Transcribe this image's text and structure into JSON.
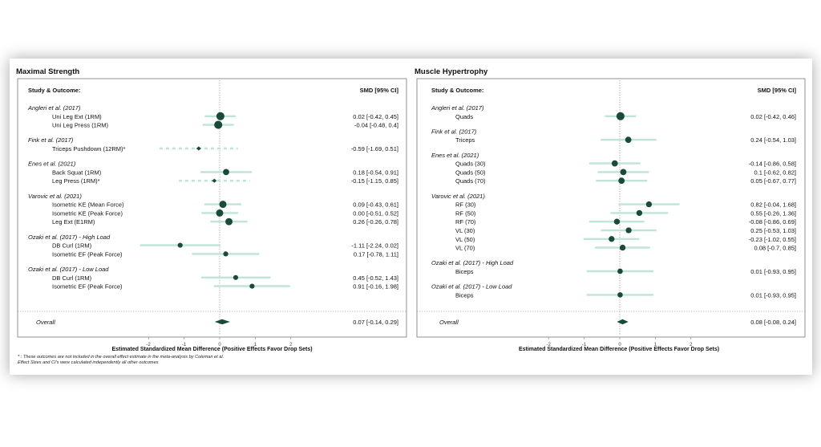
{
  "colors": {
    "point": "#1a4a3a",
    "ci": "#bfe4d8",
    "frame": "#777777",
    "text": "#111111",
    "zero_line": "#888888"
  },
  "footnote": {
    "line1": "* : These outcomes are not included in the overall effect estimate in the meta-analysis by Coleman et al.",
    "line2": "Effect Sizes and CI's were calculated independently all other outcomes"
  },
  "chart_data": [
    {
      "type": "forest",
      "title": "Maximal Strength",
      "col_left": "Study & Outcome:",
      "col_right": "SMD [95% CI]",
      "xlabel": "Estimated Standardized Mean Difference (Positive Effects Favor Drop Sets)",
      "xlim": [
        -2.5,
        2.5
      ],
      "xticks": [
        -2,
        -1,
        0,
        1,
        2
      ],
      "groups": [
        {
          "study": "Angleri et al. (2017)",
          "rows": [
            {
              "outcome": "Uni Leg Ext (1RM)",
              "est": 0.02,
              "lo": -0.42,
              "hi": 0.45,
              "label": "0.02 [-0.42, 0.45]",
              "weight": 3
            },
            {
              "outcome": "Uni Leg Press (1RM)",
              "est": -0.04,
              "lo": -0.48,
              "hi": 0.4,
              "label": "-0.04 [-0.48, 0.4]",
              "weight": 3
            }
          ]
        },
        {
          "study": "Fink et al. (2017)",
          "rows": [
            {
              "outcome": "Triceps Pushdown (12RM)*",
              "est": -0.59,
              "lo": -1.69,
              "hi": 0.51,
              "label": "-0.59 [-1.69, 0.51]",
              "weight": 1,
              "excluded": true
            }
          ]
        },
        {
          "study": "Enes et al. (2021)",
          "rows": [
            {
              "outcome": "Back Squat (1RM)",
              "est": 0.18,
              "lo": -0.54,
              "hi": 0.91,
              "label": "0.18 [-0.54, 0.91]",
              "weight": 2
            },
            {
              "outcome": "Leg Press (1RM)*",
              "est": -0.15,
              "lo": -1.15,
              "hi": 0.85,
              "label": "-0.15 [-1.15, 0.85]",
              "weight": 1,
              "excluded": true
            }
          ]
        },
        {
          "study": "Varovic et al. (2021)",
          "rows": [
            {
              "outcome": "Isometric KE (Mean Force)",
              "est": 0.09,
              "lo": -0.43,
              "hi": 0.61,
              "label": "0.09 [-0.43, 0.61]",
              "weight": 2.5
            },
            {
              "outcome": "Isometric KE (Peak Force)",
              "est": 0.0,
              "lo": -0.51,
              "hi": 0.52,
              "label": "0.00 [-0.51, 0.52]",
              "weight": 2.5
            },
            {
              "outcome": "Leg Ext (E1RM)",
              "est": 0.26,
              "lo": -0.26,
              "hi": 0.78,
              "label": "0.26 [-0.26, 0.78]",
              "weight": 2.5
            }
          ]
        },
        {
          "study": "Ozaki et al. (2017) - High Load",
          "rows": [
            {
              "outcome": "DB Curl (1RM)",
              "est": -1.11,
              "lo": -2.24,
              "hi": 0.02,
              "label": "-1.11 [-2.24, 0.02]",
              "weight": 1.3
            },
            {
              "outcome": "Isometric EF (Peak Force)",
              "est": 0.17,
              "lo": -0.78,
              "hi": 1.11,
              "label": "0.17 [-0.78, 1.11]",
              "weight": 1.3
            }
          ]
        },
        {
          "study": "Ozaki et al. (2017) - Low Load",
          "rows": [
            {
              "outcome": "DB Curl (1RM)",
              "est": 0.45,
              "lo": -0.52,
              "hi": 1.43,
              "label": "0.45 [-0.52, 1.43]",
              "weight": 1.3
            },
            {
              "outcome": "Isometric EF (Peak Force)",
              "est": 0.91,
              "lo": -0.16,
              "hi": 1.98,
              "label": "0.91 [-0.16, 1.98]",
              "weight": 1.3
            }
          ]
        }
      ],
      "overall": {
        "label_text": "Overall",
        "est": 0.07,
        "lo": -0.14,
        "hi": 0.29,
        "label": "0.07 [-0.14, 0.29]"
      }
    },
    {
      "type": "forest",
      "title": "Muscle Hypertrophy",
      "col_left": "Study & Outcome:",
      "col_right": "SMD [95% CI]",
      "xlabel": "Estimated Standardized Mean Difference (Positive Effects Favor Drop Sets)",
      "xlim": [
        -2.5,
        2.5
      ],
      "xticks": [
        -2,
        -1,
        0,
        1,
        2
      ],
      "groups": [
        {
          "study": "Angleri et al. (2017)",
          "rows": [
            {
              "outcome": "Quads",
              "est": 0.02,
              "lo": -0.42,
              "hi": 0.46,
              "label": "0.02 [-0.42, 0.46]",
              "weight": 3
            }
          ]
        },
        {
          "study": "Fink et al. (2017)",
          "rows": [
            {
              "outcome": "Triceps",
              "est": 0.24,
              "lo": -0.54,
              "hi": 1.03,
              "label": "0.24 [-0.54, 1.03]",
              "weight": 2
            }
          ]
        },
        {
          "study": "Enes et al. (2021)",
          "rows": [
            {
              "outcome": "Quads (30)",
              "est": -0.14,
              "lo": -0.86,
              "hi": 0.58,
              "label": "-0.14 [-0.86, 0.58]",
              "weight": 2
            },
            {
              "outcome": "Quads (50)",
              "est": 0.1,
              "lo": -0.62,
              "hi": 0.82,
              "label": "0.1 [-0.62, 0.82]",
              "weight": 2
            },
            {
              "outcome": "Quads (70)",
              "est": 0.05,
              "lo": -0.67,
              "hi": 0.77,
              "label": "0.05 [-0.67, 0.77]",
              "weight": 2
            }
          ]
        },
        {
          "study": "Varovic et al. (2021)",
          "rows": [
            {
              "outcome": "RF (30)",
              "est": 0.82,
              "lo": -0.04,
              "hi": 1.68,
              "label": "0.82 [-0.04, 1.68]",
              "weight": 1.8
            },
            {
              "outcome": "RF (50)",
              "est": 0.55,
              "lo": -0.26,
              "hi": 1.36,
              "label": "0.55 [-0.26, 1.36]",
              "weight": 1.8
            },
            {
              "outcome": "RF (70)",
              "est": -0.08,
              "lo": -0.86,
              "hi": 0.69,
              "label": "-0.08 [-0.86, 0.69]",
              "weight": 1.8
            },
            {
              "outcome": "VL (30)",
              "est": 0.25,
              "lo": -0.53,
              "hi": 1.03,
              "label": "0.25 [-0.53, 1.03]",
              "weight": 1.8
            },
            {
              "outcome": "VL (50)",
              "est": -0.23,
              "lo": -1.02,
              "hi": 0.55,
              "label": "-0.23 [-1.02, 0.55]",
              "weight": 1.8
            },
            {
              "outcome": "VL (70)",
              "est": 0.08,
              "lo": -0.7,
              "hi": 0.85,
              "label": "0.08 [-0.7, 0.85]",
              "weight": 1.8
            }
          ]
        },
        {
          "study": "Ozaki et al. (2017) - High Load",
          "rows": [
            {
              "outcome": "Biceps",
              "est": 0.01,
              "lo": -0.93,
              "hi": 0.95,
              "label": "0.01 [-0.93, 0.95]",
              "weight": 1.5
            }
          ]
        },
        {
          "study": "Ozaki et al. (2017) - Low Load",
          "rows": [
            {
              "outcome": "Biceps",
              "est": 0.01,
              "lo": -0.93,
              "hi": 0.95,
              "label": "0.01 [-0.93, 0.95]",
              "weight": 1.5
            }
          ]
        }
      ],
      "overall": {
        "label_text": "Overall",
        "est": 0.08,
        "lo": -0.08,
        "hi": 0.24,
        "label": "0.08 [-0.08, 0.24]"
      }
    }
  ]
}
